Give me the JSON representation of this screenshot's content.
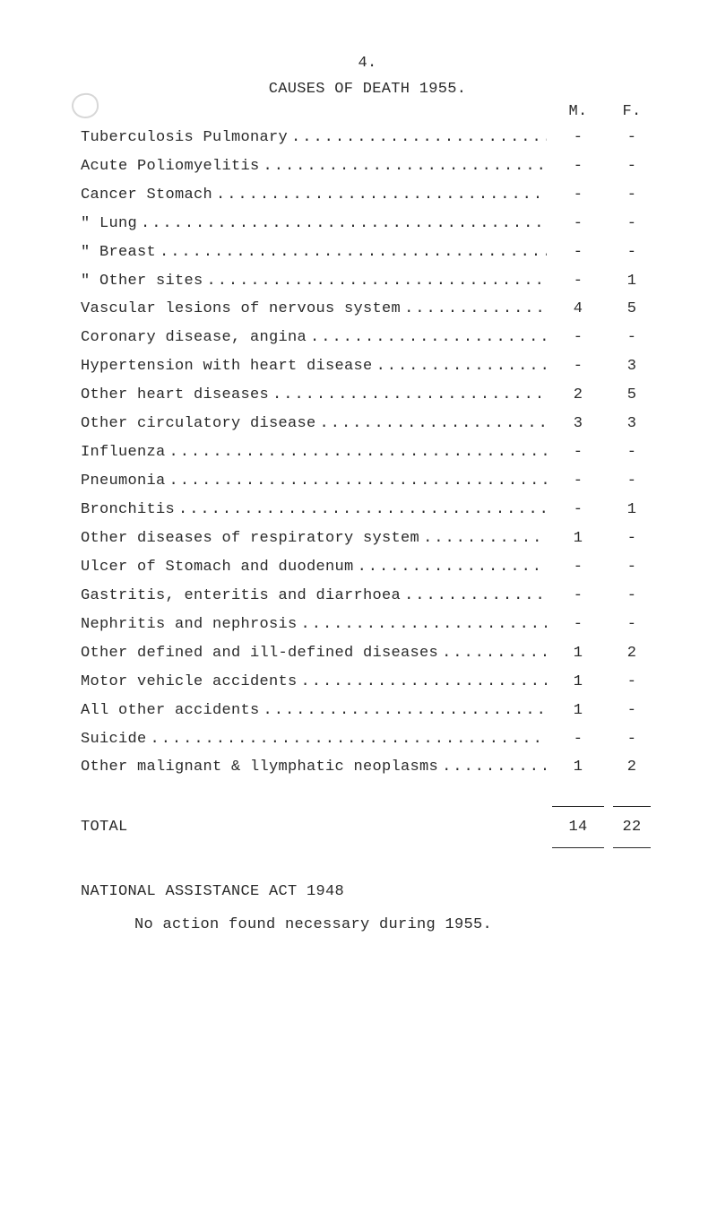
{
  "page_number": "4.",
  "heading": "CAUSES OF DEATH 1955.",
  "col_m": "M.",
  "col_f": "F.",
  "rows": [
    {
      "label": "Tuberculosis Pulmonary ",
      "m": "-",
      "f": "-"
    },
    {
      "label": "Acute Poliomyelitis ",
      "m": "-",
      "f": "-"
    },
    {
      "label": "Cancer Stomach ",
      "m": "-",
      "f": "-"
    },
    {
      "label": "   \"    Lung ",
      "m": "-",
      "f": "-"
    },
    {
      "label": "   \"    Breast ",
      "m": "-",
      "f": "-"
    },
    {
      "label": "   \"    Other sites",
      "m": "-",
      "f": "1"
    },
    {
      "label": "Vascular lesions of nervous system ",
      "m": "4",
      "f": "5"
    },
    {
      "label": "Coronary disease, angina ",
      "m": "-",
      "f": "-"
    },
    {
      "label": "Hypertension with heart disease ",
      "m": "-",
      "f": "3"
    },
    {
      "label": "Other heart diseases ",
      "m": "2",
      "f": "5"
    },
    {
      "label": "Other circulatory disease ",
      "m": "3",
      "f": "3"
    },
    {
      "label": "Influenza ",
      "m": "-",
      "f": "-"
    },
    {
      "label": "Pneumonia ",
      "m": "-",
      "f": "-"
    },
    {
      "label": "Bronchitis ",
      "m": "-",
      "f": "1"
    },
    {
      "label": "Other diseases of respiratory system ",
      "m": "1",
      "f": "-"
    },
    {
      "label": "Ulcer of Stomach and duodenum ",
      "m": "-",
      "f": "-"
    },
    {
      "label": "Gastritis, enteritis and diarrhoea ",
      "m": "-",
      "f": "-"
    },
    {
      "label": "Nephritis and nephrosis ",
      "m": "-",
      "f": "-"
    },
    {
      "label": "Other defined and ill-defined diseases",
      "m": "1",
      "f": "2"
    },
    {
      "label": "Motor vehicle accidents",
      "m": "1",
      "f": "-"
    },
    {
      "label": "All other accidents ",
      "m": "1",
      "f": "-"
    },
    {
      "label": "Suicide ",
      "m": "-",
      "f": "-"
    },
    {
      "label": "Other malignant & llymphatic neoplasms",
      "m": "1",
      "f": "2"
    }
  ],
  "total_label": "TOTAL",
  "total_m": "14",
  "total_f": "22",
  "footer1": "NATIONAL ASSISTANCE ACT 1948",
  "footer2": "No action found necessary during 1955.",
  "dots": "........................................................................"
}
